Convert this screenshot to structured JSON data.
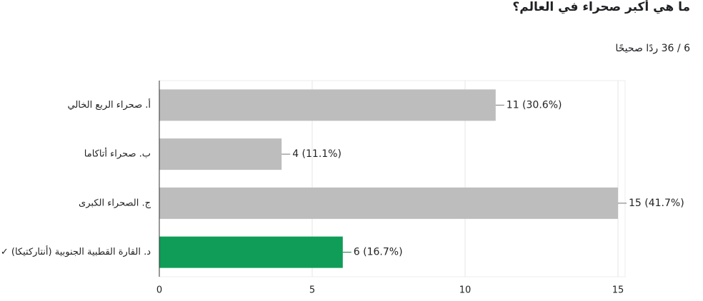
{
  "chart_data": {
    "type": "bar",
    "orientation": "horizontal",
    "title": "ما هي أكبر صحراء في العالم؟",
    "subtitle": "6 / 36 ردًا صحيحًا",
    "categories": [
      "أ. صحراء الربع الخالي",
      "ب. صحراء أتاكاما",
      "ج. الصحراء الكبرى",
      "د. القارة القطبية الجنوبية (أنتاركتيكا) ✓"
    ],
    "values": [
      11,
      4,
      15,
      6
    ],
    "value_labels": [
      "11 (30.6%)",
      "4 (11.1%)",
      "15 (41.7%)",
      "6 (16.7%)"
    ],
    "colors": [
      "#bdbdbd",
      "#bdbdbd",
      "#bdbdbd",
      "#0f9d58"
    ],
    "value_label_colors": [
      "#757575",
      "#757575",
      "#757575",
      "#137333"
    ],
    "xlim": [
      0,
      15
    ],
    "xticks": [
      0,
      5,
      10,
      15
    ],
    "grid": true
  }
}
